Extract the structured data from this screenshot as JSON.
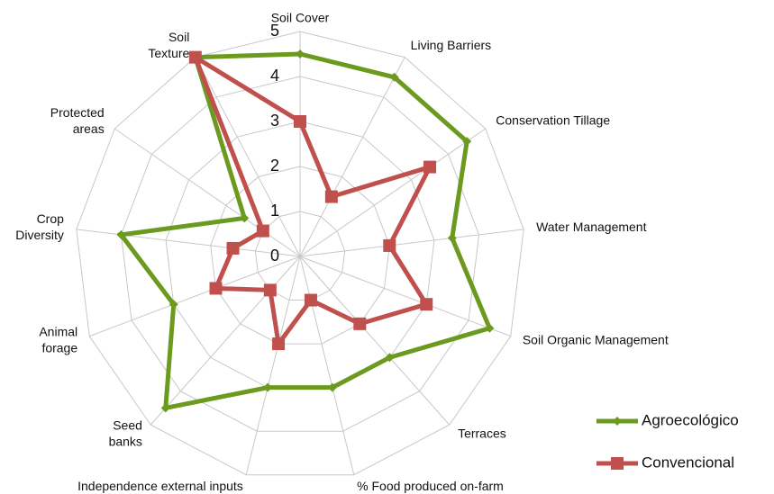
{
  "chart_data": {
    "type": "radar",
    "categories": [
      "Soil Cover",
      "Living Barriers",
      "Conservation Tillage",
      "Water Management",
      "Soil Organic Management",
      "Terraces",
      "% Food produced on-farm",
      "Independence external inputs",
      "Seed\nbanks",
      "Animal\nforage",
      "Crop\nDiversity",
      "Protected\nareas",
      "Soil\nTexture"
    ],
    "series": [
      {
        "name": "Agroecológico",
        "color": "#6b9a1f",
        "values": [
          4.5,
          4.5,
          4.5,
          3.4,
          4.5,
          3,
          3,
          3,
          4.5,
          3,
          4,
          1.5,
          5
        ]
      },
      {
        "name": "Convencional",
        "color": "#c0504d",
        "values": [
          3,
          1.5,
          3.5,
          2,
          3,
          2,
          1,
          2,
          1,
          2,
          1.5,
          1,
          5
        ]
      }
    ],
    "ylim": [
      0,
      5
    ],
    "yticks": [
      0,
      1,
      2,
      3,
      4,
      5
    ],
    "grid": true,
    "legend": "bottom-right"
  }
}
